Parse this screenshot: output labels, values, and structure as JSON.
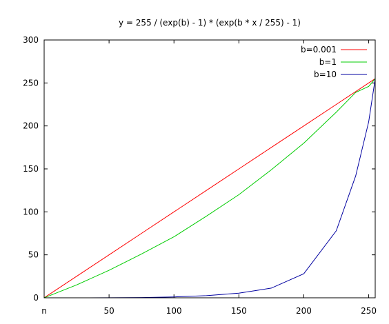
{
  "chart_data": {
    "type": "line",
    "title": "y = 255 / (exp(b) - 1) * (exp(b * x / 255) - 1)",
    "xlabel": "",
    "ylabel": "",
    "xlim": [
      0,
      255
    ],
    "ylim": [
      0,
      300
    ],
    "x_ticks": [
      0,
      50,
      100,
      150,
      200,
      250
    ],
    "x_tick_labels": [
      "n",
      "50",
      "100",
      "150",
      "200",
      "250"
    ],
    "y_ticks": [
      0,
      50,
      100,
      150,
      200,
      250,
      300
    ],
    "y_tick_labels": [
      "0",
      "50",
      "100",
      "150",
      "200",
      "250",
      "300"
    ],
    "grid": false,
    "legend_position": "top-right",
    "x": [
      0,
      25,
      50,
      75,
      100,
      125,
      150,
      175,
      200,
      225,
      240,
      250,
      255
    ],
    "series": [
      {
        "name": "b=0.001",
        "color": "#ff0000",
        "values": [
          0,
          25,
          50,
          75,
          100,
          125,
          150,
          175,
          200,
          225,
          240,
          250,
          255
        ]
      },
      {
        "name": "b=1",
        "color": "#00cc00",
        "values": [
          0,
          15,
          32,
          51,
          71,
          95,
          120,
          149,
          180,
          216,
          239,
          246,
          255
        ]
      },
      {
        "name": "b=10",
        "color": "#0000a0",
        "values": [
          0,
          0.01,
          0.08,
          0.3,
          1.0,
          2.5,
          5.4,
          11.3,
          28,
          78,
          142,
          205,
          255
        ]
      }
    ]
  }
}
